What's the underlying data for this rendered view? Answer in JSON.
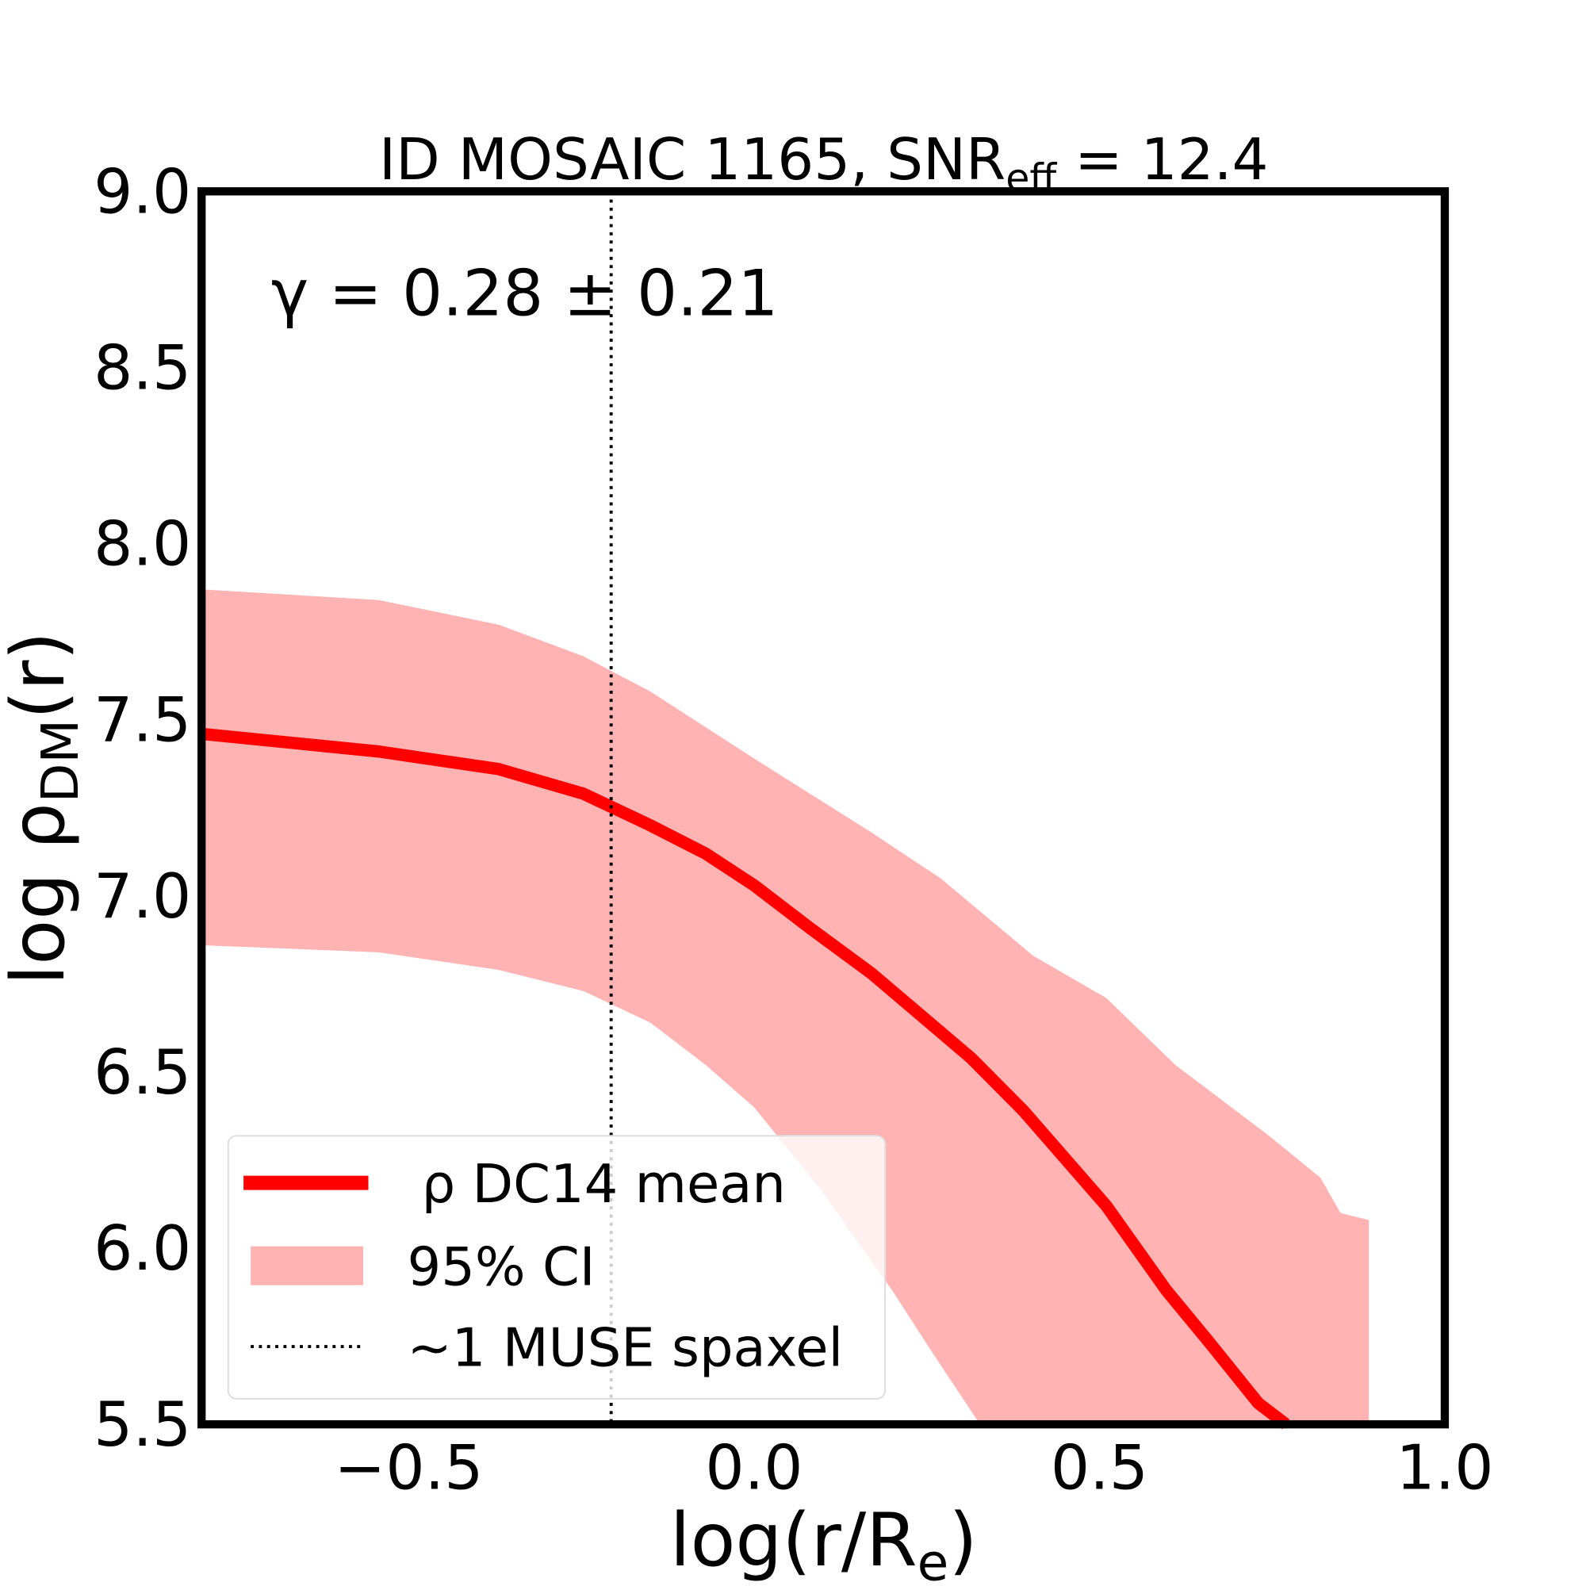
{
  "chart_data": {
    "type": "line",
    "title": "ID MOSAIC 1165, SNR",
    "title_sub": "eff",
    "title_suffix": " = 12.4",
    "annotation": "γ = 0.28 ± 0.21",
    "xlabel": "log(r/R",
    "xlabel_sub": "e",
    "xlabel_end": ")",
    "ylabel": "log ρ",
    "ylabel_sub": "DM",
    "ylabel_end": "(r)",
    "xlim": [
      -0.8,
      1.0
    ],
    "ylim": [
      5.5,
      9.0
    ],
    "xticks": [
      "−0.5",
      "0.0",
      "0.5",
      "1.0"
    ],
    "xtick_values": [
      -0.5,
      0.0,
      0.5,
      1.0
    ],
    "yticks": [
      "5.5",
      "6.0",
      "6.5",
      "7.0",
      "7.5",
      "8.0",
      "8.5",
      "9.0"
    ],
    "ytick_values": [
      5.5,
      6.0,
      6.5,
      7.0,
      7.5,
      8.0,
      8.5,
      9.0
    ],
    "grid": false,
    "legend_placement": "lower-left",
    "series": [
      {
        "name": "ρ DC14 mean",
        "color": "#ff0000",
        "x": [
          -0.8,
          -0.544,
          -0.37,
          -0.247,
          -0.15,
          -0.07,
          0.0,
          0.08,
          0.17,
          0.314,
          0.39,
          0.51,
          0.597,
          0.656,
          0.73,
          0.77
        ],
        "y": [
          7.46,
          7.41,
          7.36,
          7.29,
          7.2,
          7.12,
          7.03,
          6.91,
          6.78,
          6.54,
          6.39,
          6.12,
          5.88,
          5.74,
          5.56,
          5.5
        ]
      }
    ],
    "band": {
      "name": "95% CI",
      "color": "#ffb3b3",
      "upper": {
        "x": [
          -0.8,
          -0.544,
          -0.37,
          -0.247,
          -0.15,
          0.0,
          0.17,
          0.27,
          0.404,
          0.51,
          0.61,
          0.745,
          0.82,
          0.849,
          0.89
        ],
        "y": [
          7.87,
          7.84,
          7.77,
          7.68,
          7.58,
          7.39,
          7.18,
          7.05,
          6.83,
          6.71,
          6.52,
          6.32,
          6.2,
          6.1,
          6.08
        ]
      },
      "lower": {
        "x": [
          -0.8,
          -0.544,
          -0.37,
          -0.247,
          -0.15,
          -0.07,
          0.0,
          0.095,
          0.2,
          0.256,
          0.327
        ],
        "y": [
          6.86,
          6.84,
          6.79,
          6.73,
          6.64,
          6.52,
          6.4,
          6.17,
          5.88,
          5.71,
          5.5
        ]
      },
      "right_edge_x": 0.89
    },
    "vline": {
      "name": "~1 MUSE spaxel",
      "x": -0.207,
      "style": "dotted"
    }
  }
}
